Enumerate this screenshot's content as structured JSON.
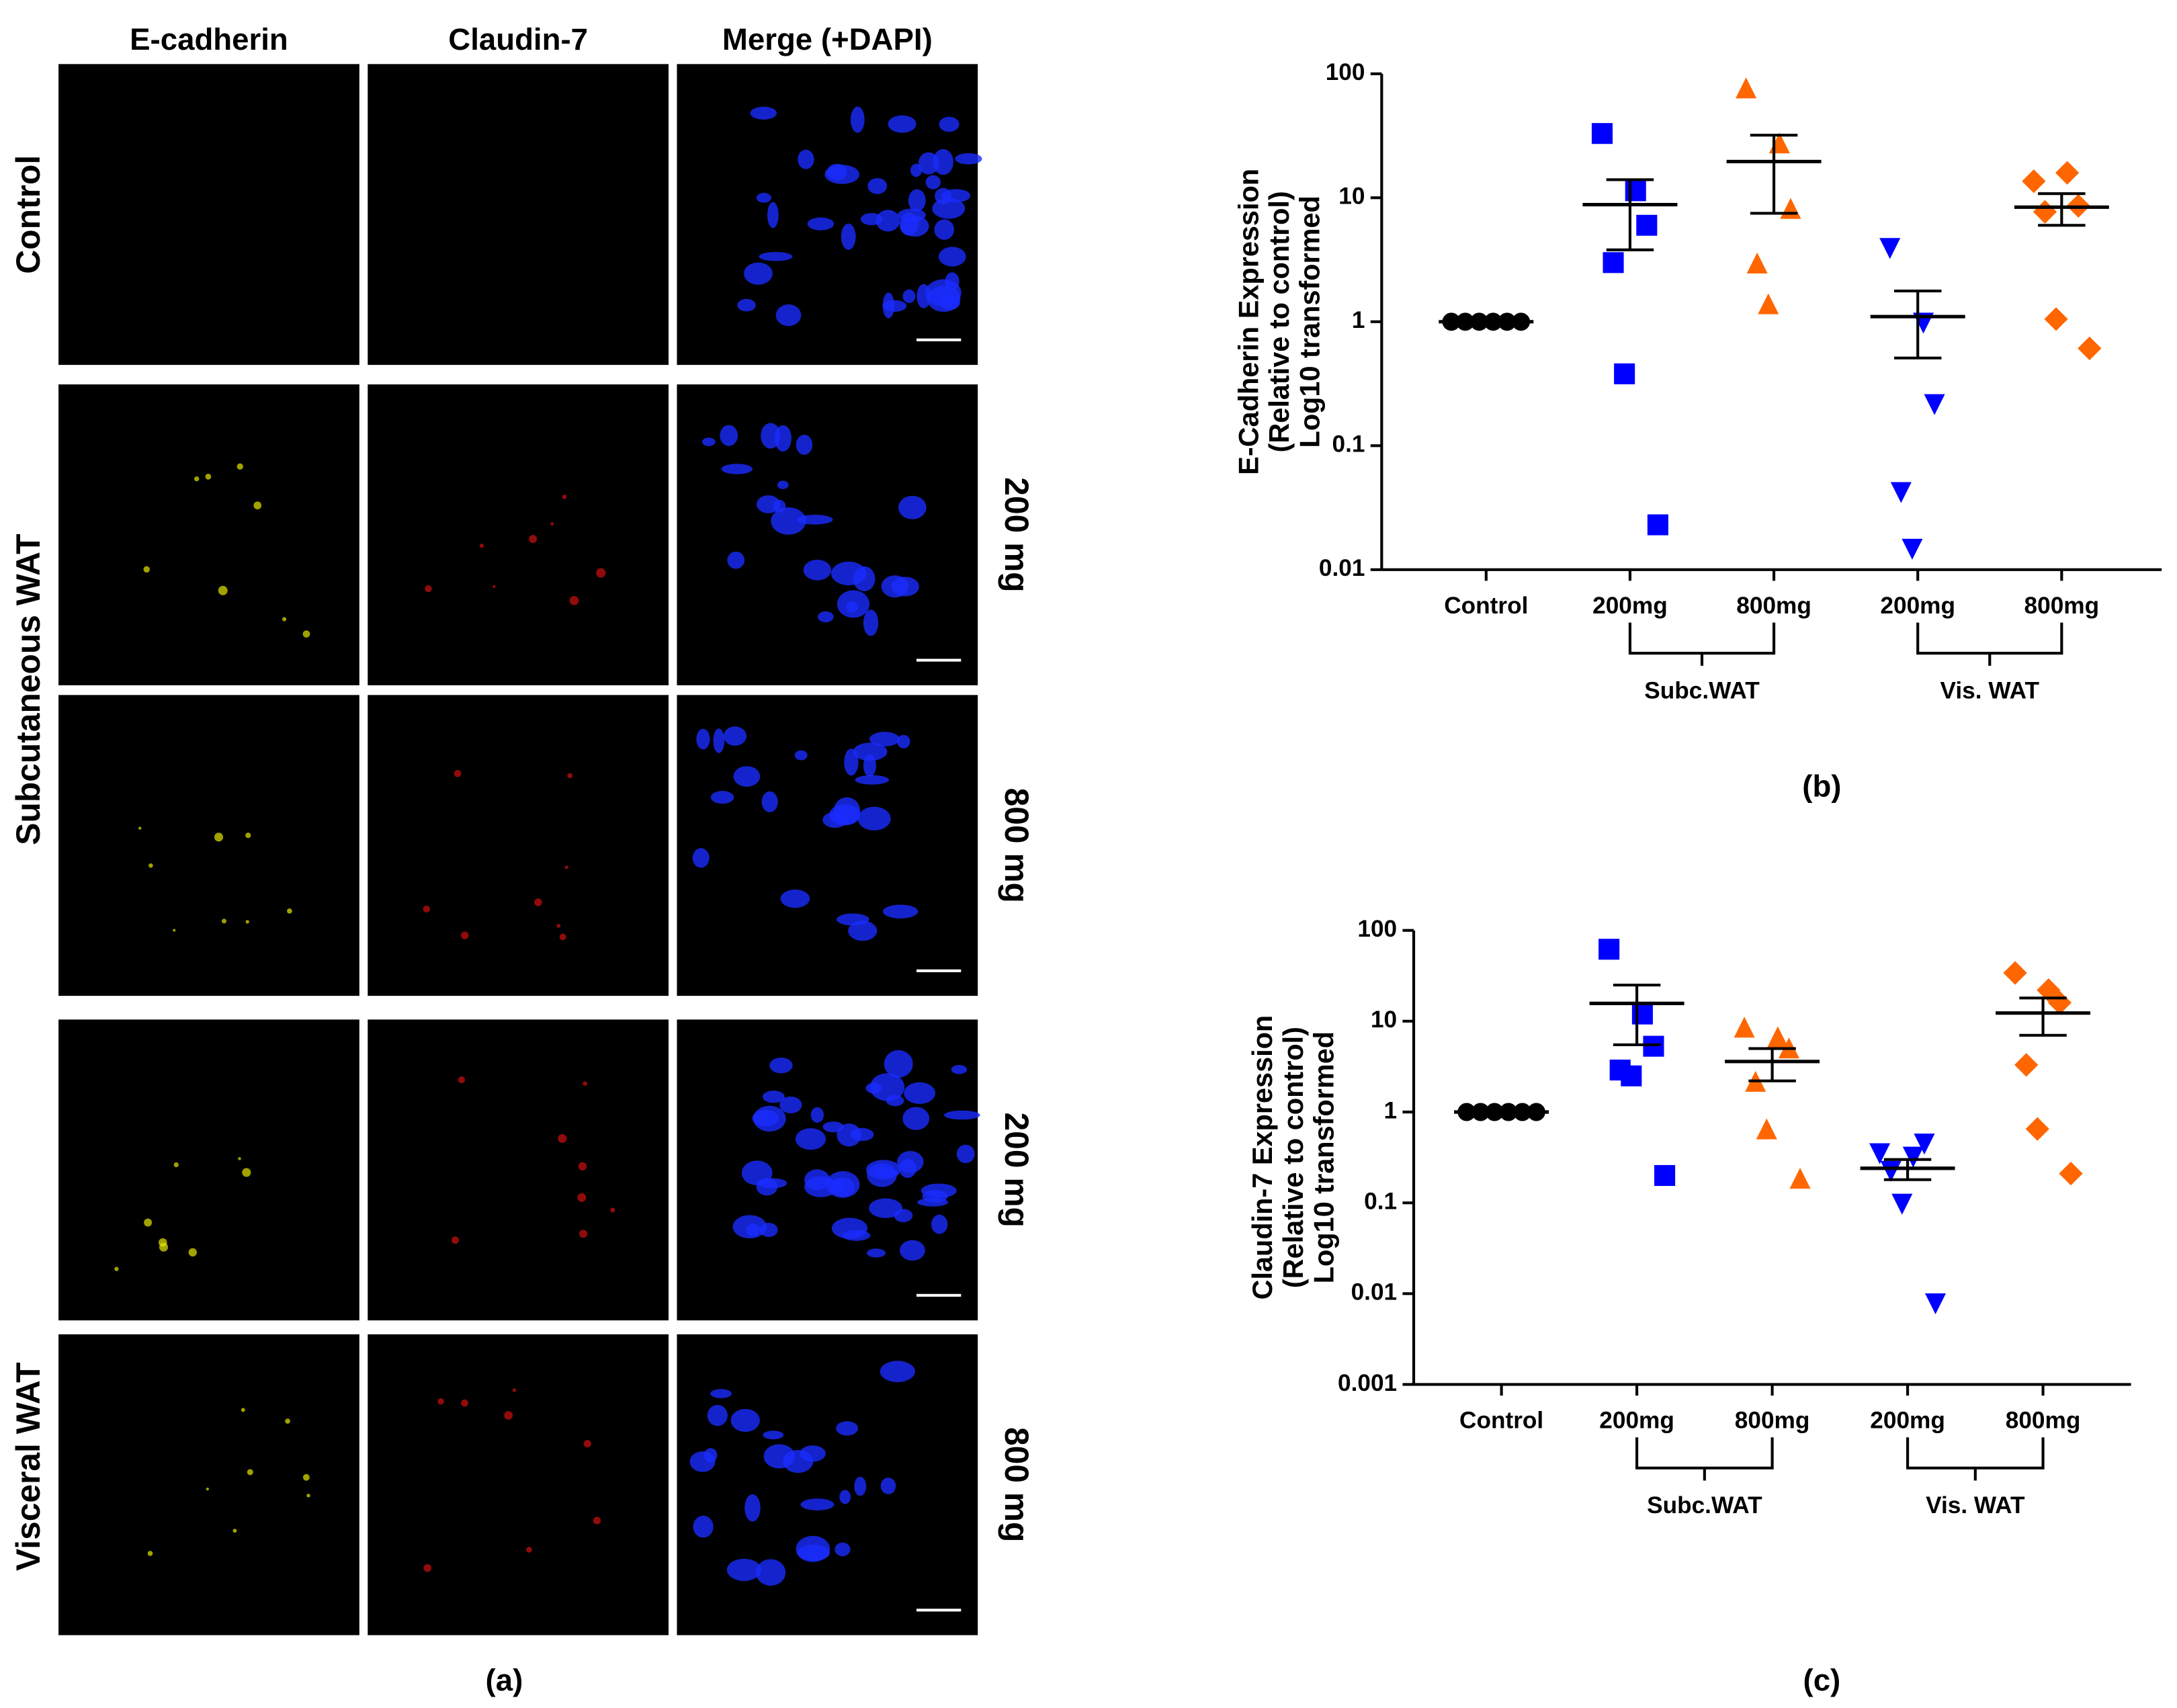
{
  "figure_a": {
    "columns": [
      "E-cadherin",
      "Claudin-7",
      "Merge (+DAPI)"
    ],
    "rows": [
      "Control",
      "Subcutaneous WAT",
      "Visceral WAT"
    ],
    "doses": [
      "200 mg",
      "800 mg",
      "200 mg",
      "800 mg"
    ],
    "caption": "(a)"
  },
  "chart_data": [
    {
      "type": "dot",
      "panel": "(b)",
      "ylabel": [
        "E-Cadherin Expression",
        "(Relative to control)",
        "Log10 transformed"
      ],
      "categories": [
        "Control",
        "200mg",
        "800mg",
        "200mg",
        "800mg"
      ],
      "group_labels": [
        "Subc.WAT",
        "Vis. WAT"
      ],
      "colors": [
        "#000000",
        "#0000ff",
        "#ff6600",
        "#0000ff",
        "#ff6600"
      ],
      "markers": [
        "circle",
        "square",
        "triangle",
        "triangle-down",
        "diamond"
      ],
      "points": [
        [
          1,
          1,
          1,
          1,
          1,
          1
        ],
        [
          33,
          11.4,
          6,
          3,
          0.38,
          0.023
        ],
        [
          75,
          27,
          8,
          2.9,
          1.36
        ],
        [
          4,
          1,
          0.22,
          0.043,
          0.015
        ],
        [
          13.6,
          15.9,
          8.6,
          7.7,
          1.05,
          0.61
        ]
      ],
      "mean": [
        1,
        8.8,
        19.6,
        1.1,
        8.4
      ],
      "err_low": [
        null,
        3.8,
        7.5,
        0.51,
        6
      ],
      "err_high": [
        null,
        14,
        32,
        1.77,
        10.8
      ],
      "yscale": "log",
      "ylim": [
        0.01,
        100
      ],
      "yticks": [
        0.01,
        0.1,
        1,
        10,
        100
      ]
    },
    {
      "type": "dot",
      "panel": "(c)",
      "ylabel": [
        "Claudin-7 Expression",
        "(Relative to control)",
        "Log10 transformed"
      ],
      "categories": [
        "Control",
        "200mg",
        "800mg",
        "200mg",
        "800mg"
      ],
      "group_labels": [
        "Subc.WAT",
        "Vis. WAT"
      ],
      "colors": [
        "#000000",
        "#0000ff",
        "#ff6600",
        "#0000ff",
        "#ff6600"
      ],
      "markers": [
        "circle",
        "square",
        "triangle",
        "triangle-down",
        "diamond"
      ],
      "points": [
        [
          1,
          1,
          1,
          1,
          1,
          1
        ],
        [
          62,
          12,
          5.3,
          2.9,
          2.5,
          0.2
        ],
        [
          8.3,
          6.5,
          4.9,
          2.1,
          0.63,
          0.18
        ],
        [
          0.36,
          0.33,
          0.46,
          0.23,
          0.1,
          0.008
        ],
        [
          34,
          22,
          16,
          3.3,
          0.65,
          0.21
        ]
      ],
      "mean": [
        1,
        15.7,
        3.6,
        0.24,
        12.3
      ],
      "err_low": [
        null,
        5.5,
        2.2,
        0.18,
        7
      ],
      "err_high": [
        null,
        25,
        5,
        0.3,
        18
      ],
      "yscale": "log",
      "ylim": [
        0.001,
        100
      ],
      "yticks": [
        0.001,
        0.01,
        0.1,
        1,
        10,
        100
      ]
    }
  ]
}
